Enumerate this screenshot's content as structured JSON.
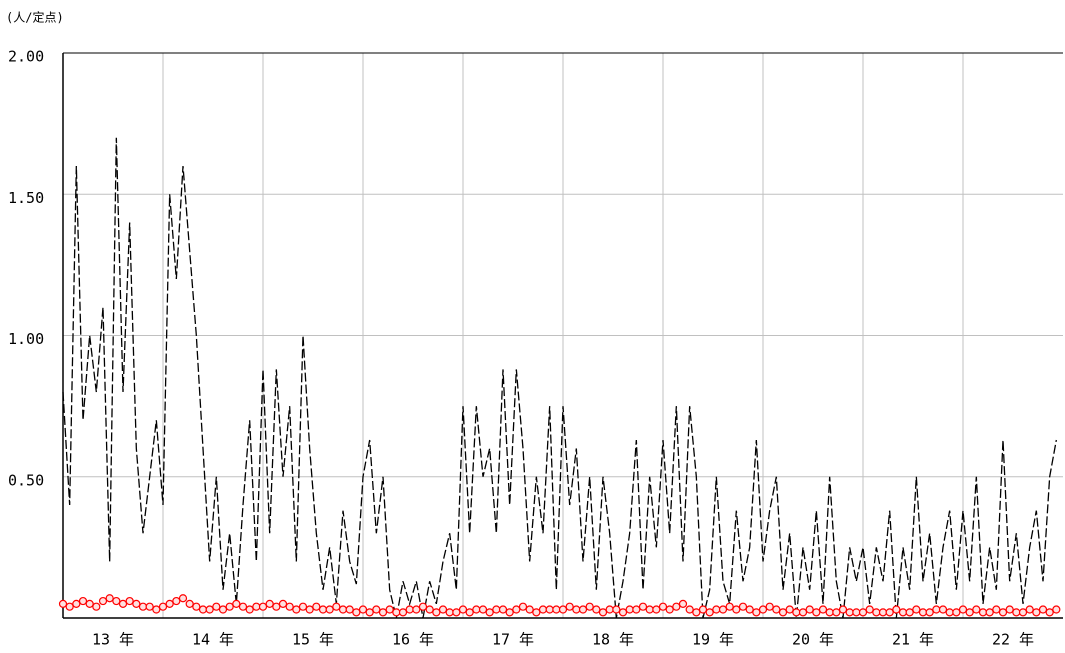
{
  "chart_data": {
    "type": "line",
    "y_unit_label": "(人/定点)",
    "xlim": [
      0,
      150
    ],
    "xticks": [
      {
        "value": 7.5,
        "label": "13 年"
      },
      {
        "value": 22.5,
        "label": "14 年"
      },
      {
        "value": 37.5,
        "label": "15 年"
      },
      {
        "value": 52.5,
        "label": "16 年"
      },
      {
        "value": 67.5,
        "label": "17 年"
      },
      {
        "value": 82.5,
        "label": "18 年"
      },
      {
        "value": 97.5,
        "label": "19 年"
      },
      {
        "value": 112.5,
        "label": "20 年"
      },
      {
        "value": 127.5,
        "label": "21 年"
      },
      {
        "value": 142.5,
        "label": "22 年"
      }
    ],
    "ylim": [
      0,
      2
    ],
    "yticks": [
      {
        "value": 0.5,
        "label": "0.50"
      },
      {
        "value": 1,
        "label": "1.00"
      },
      {
        "value": 1.5,
        "label": "1.50"
      },
      {
        "value": 2,
        "label": "2.00"
      }
    ],
    "grid": true,
    "x": [
      0,
      1,
      2,
      3,
      4,
      5,
      6,
      7,
      8,
      9,
      10,
      11,
      12,
      13,
      14,
      15,
      16,
      17,
      18,
      19,
      20,
      21,
      22,
      23,
      24,
      25,
      26,
      27,
      28,
      29,
      30,
      31,
      32,
      33,
      34,
      35,
      36,
      37,
      38,
      39,
      40,
      41,
      42,
      43,
      44,
      45,
      46,
      47,
      48,
      49,
      50,
      51,
      52,
      53,
      54,
      55,
      56,
      57,
      58,
      59,
      60,
      61,
      62,
      63,
      64,
      65,
      66,
      67,
      68,
      69,
      70,
      71,
      72,
      73,
      74,
      75,
      76,
      77,
      78,
      79,
      80,
      81,
      82,
      83,
      84,
      85,
      86,
      87,
      88,
      89,
      90,
      91,
      92,
      93,
      94,
      95,
      96,
      97,
      98,
      99,
      100,
      101,
      102,
      103,
      104,
      105,
      106,
      107,
      108,
      109,
      110,
      111,
      112,
      113,
      114,
      115,
      116,
      117,
      118,
      119,
      120,
      121,
      122,
      123,
      124,
      125,
      126,
      127,
      128,
      129,
      130,
      131,
      132,
      133,
      134,
      135,
      136,
      137,
      138,
      139,
      140,
      141,
      142,
      143,
      144,
      145,
      146,
      147,
      148,
      149
    ],
    "series": [
      {
        "color": "#000000",
        "style": "dashed",
        "values": [
          0.8,
          0.4,
          1.6,
          0.7,
          1.0,
          0.8,
          1.1,
          0.2,
          1.7,
          0.8,
          1.4,
          0.6,
          0.3,
          0.5,
          0.7,
          0.4,
          1.5,
          1.2,
          1.6,
          1.3,
          1.0,
          0.6,
          0.2,
          0.5,
          0.1,
          0.3,
          0.05,
          0.4,
          0.7,
          0.2,
          0.88,
          0.3,
          0.88,
          0.5,
          0.75,
          0.2,
          1.0,
          0.6,
          0.3,
          0.1,
          0.25,
          0.05,
          0.38,
          0.2,
          0.12,
          0.5,
          0.63,
          0.3,
          0.5,
          0.1,
          0.0,
          0.13,
          0.05,
          0.13,
          0.0,
          0.13,
          0.05,
          0.2,
          0.3,
          0.1,
          0.75,
          0.3,
          0.75,
          0.5,
          0.6,
          0.3,
          0.88,
          0.4,
          0.88,
          0.6,
          0.2,
          0.5,
          0.3,
          0.75,
          0.1,
          0.75,
          0.4,
          0.6,
          0.2,
          0.5,
          0.1,
          0.5,
          0.3,
          0.0,
          0.13,
          0.3,
          0.63,
          0.1,
          0.5,
          0.25,
          0.63,
          0.3,
          0.75,
          0.2,
          0.75,
          0.5,
          0.0,
          0.1,
          0.5,
          0.13,
          0.05,
          0.38,
          0.13,
          0.25,
          0.63,
          0.2,
          0.38,
          0.5,
          0.1,
          0.3,
          0.0,
          0.25,
          0.1,
          0.38,
          0.05,
          0.5,
          0.13,
          0.0,
          0.25,
          0.13,
          0.25,
          0.05,
          0.25,
          0.13,
          0.38,
          0.0,
          0.25,
          0.1,
          0.5,
          0.13,
          0.3,
          0.05,
          0.25,
          0.38,
          0.1,
          0.38,
          0.13,
          0.5,
          0.05,
          0.25,
          0.1,
          0.63,
          0.13,
          0.3,
          0.05,
          0.25,
          0.38,
          0.13,
          0.5,
          0.63
        ]
      },
      {
        "color": "#ff0000",
        "style": "markers",
        "values": [
          0.05,
          0.04,
          0.05,
          0.06,
          0.05,
          0.04,
          0.06,
          0.07,
          0.06,
          0.05,
          0.06,
          0.05,
          0.04,
          0.04,
          0.03,
          0.04,
          0.05,
          0.06,
          0.07,
          0.05,
          0.04,
          0.03,
          0.03,
          0.04,
          0.03,
          0.04,
          0.05,
          0.04,
          0.03,
          0.04,
          0.04,
          0.05,
          0.04,
          0.05,
          0.04,
          0.03,
          0.04,
          0.03,
          0.04,
          0.03,
          0.03,
          0.04,
          0.03,
          0.03,
          0.02,
          0.03,
          0.02,
          0.03,
          0.02,
          0.03,
          0.02,
          0.02,
          0.03,
          0.03,
          0.04,
          0.03,
          0.02,
          0.03,
          0.02,
          0.02,
          0.03,
          0.02,
          0.03,
          0.03,
          0.02,
          0.03,
          0.03,
          0.02,
          0.03,
          0.04,
          0.03,
          0.02,
          0.03,
          0.03,
          0.03,
          0.03,
          0.04,
          0.03,
          0.03,
          0.04,
          0.03,
          0.02,
          0.03,
          0.03,
          0.02,
          0.03,
          0.03,
          0.04,
          0.03,
          0.03,
          0.04,
          0.03,
          0.04,
          0.05,
          0.03,
          0.02,
          0.03,
          0.02,
          0.03,
          0.03,
          0.04,
          0.03,
          0.04,
          0.03,
          0.02,
          0.03,
          0.04,
          0.03,
          0.02,
          0.03,
          0.02,
          0.02,
          0.03,
          0.02,
          0.03,
          0.02,
          0.02,
          0.03,
          0.02,
          0.02,
          0.02,
          0.03,
          0.02,
          0.02,
          0.02,
          0.03,
          0.02,
          0.02,
          0.03,
          0.02,
          0.02,
          0.03,
          0.03,
          0.02,
          0.02,
          0.03,
          0.02,
          0.03,
          0.02,
          0.02,
          0.03,
          0.02,
          0.03,
          0.02,
          0.02,
          0.03,
          0.02,
          0.03,
          0.02,
          0.03
        ]
      }
    ]
  }
}
